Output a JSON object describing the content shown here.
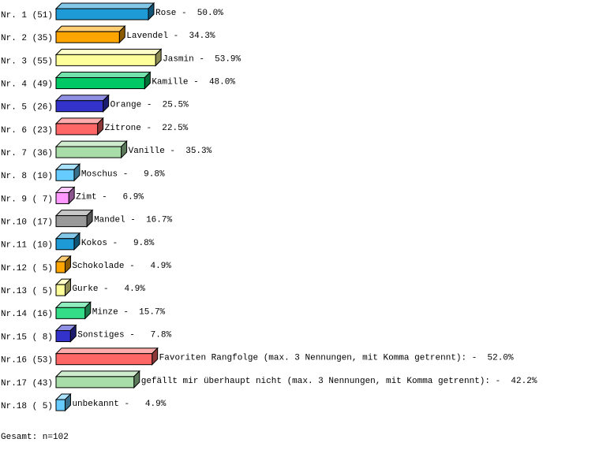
{
  "chart_data": {
    "type": "bar",
    "orientation": "horizontal",
    "categories": [
      "Nr. 1 (51)",
      "Nr. 2 (35)",
      "Nr. 3 (55)",
      "Nr. 4 (49)",
      "Nr. 5 (26)",
      "Nr. 6 (23)",
      "Nr. 7 (36)",
      "Nr. 8 (10)",
      "Nr. 9 ( 7)",
      "Nr.10 (17)",
      "Nr.11 (10)",
      "Nr.12 ( 5)",
      "Nr.13 ( 5)",
      "Nr.14 (16)",
      "Nr.15 ( 8)",
      "Nr.16 (53)",
      "Nr.17 (43)",
      "Nr.18 ( 5)"
    ],
    "labels": [
      "Rose -",
      "Lavendel -",
      "Jasmin -",
      "Kamille -",
      "Orange -",
      "Zitrone -",
      "Vanille -",
      "Moschus -",
      "Zimt -",
      "Mandel -",
      "Kokos -",
      "Schokolade -",
      "Gurke -",
      "Minze -",
      "Sonstiges -",
      "Favoriten Rangfolge (max. 3 Nennungen, mit Komma getrennt): -",
      "gefällt mir überhaupt nicht (max. 3 Nennungen, mit Komma getrennt): -",
      "unbekannt -"
    ],
    "values": [
      50.0,
      34.3,
      53.9,
      48.0,
      25.5,
      22.5,
      35.3,
      9.8,
      6.9,
      16.7,
      9.8,
      4.9,
      4.9,
      15.7,
      7.8,
      52.0,
      42.2,
      4.9
    ],
    "value_labels": [
      "50.0%",
      "34.3%",
      "53.9%",
      "48.0%",
      "25.5%",
      "22.5%",
      "35.3%",
      "9.8%",
      "6.9%",
      "16.7%",
      "9.8%",
      "4.9%",
      "4.9%",
      "15.7%",
      "7.8%",
      "52.0%",
      "42.2%",
      "4.9%"
    ],
    "colors": [
      "#1e9bd7",
      "#ffa500",
      "#ffff99",
      "#00c864",
      "#3333cc",
      "#ff6666",
      "#a8dca8",
      "#66ccff",
      "#ff99ff",
      "#999999",
      "#1e9bd7",
      "#ffa500",
      "#ffff99",
      "#33dd88",
      "#3333cc",
      "#ff6666",
      "#a8dca8",
      "#66ccff"
    ],
    "footer": "Gesamt: n=102"
  }
}
